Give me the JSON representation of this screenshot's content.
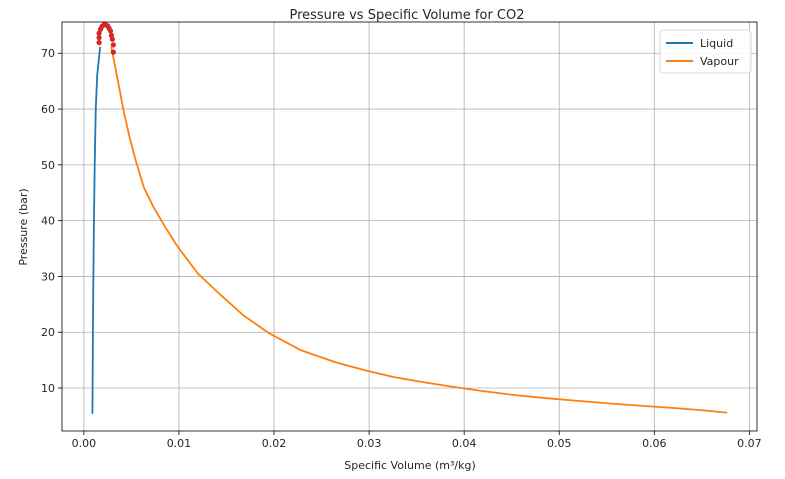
{
  "chart_data": {
    "type": "line",
    "title": "Pressure vs Specific Volume for CO2",
    "xlabel": "Specific Volume (m³/kg)",
    "ylabel": "Pressure (bar)",
    "xlim": [
      -0.0023,
      0.0708
    ],
    "ylim": [
      2.3,
      75.6
    ],
    "xticks": [
      0.0,
      0.01,
      0.02,
      0.03,
      0.04,
      0.05,
      0.06,
      0.07
    ],
    "xtick_labels": [
      "0.00",
      "0.01",
      "0.02",
      "0.03",
      "0.04",
      "0.05",
      "0.06",
      "0.07"
    ],
    "yticks": [
      10,
      20,
      30,
      40,
      50,
      60,
      70
    ],
    "ytick_labels": [
      "10",
      "20",
      "30",
      "40",
      "50",
      "60",
      "70"
    ],
    "grid": true,
    "legend_position": "top-right",
    "series": [
      {
        "name": "Liquid",
        "color": "#1f77b4",
        "x": [
          0.0009,
          0.00092,
          0.00095,
          0.001,
          0.00106,
          0.00114,
          0.00125,
          0.0014,
          0.0017
        ],
        "y": [
          5.5,
          10.0,
          20.0,
          30.0,
          40.0,
          50.0,
          60.0,
          66.0,
          71.0
        ]
      },
      {
        "name": "Vapour",
        "color": "#ff7f0e",
        "x": [
          0.0029,
          0.0033,
          0.0037,
          0.0042,
          0.0048,
          0.0055,
          0.0063,
          0.0073,
          0.0085,
          0.0098,
          0.012,
          0.0145,
          0.0168,
          0.0195,
          0.0228,
          0.0265,
          0.0295,
          0.0325,
          0.0355,
          0.0385,
          0.0418,
          0.045,
          0.0485,
          0.052,
          0.0555,
          0.0588,
          0.0622,
          0.0652,
          0.0676
        ],
        "y": [
          71.0,
          67.5,
          64.0,
          59.5,
          55.0,
          50.5,
          46.0,
          42.5,
          39.0,
          35.5,
          30.5,
          26.5,
          23.0,
          19.8,
          16.8,
          14.6,
          13.2,
          12.0,
          11.1,
          10.3,
          9.5,
          8.8,
          8.2,
          7.7,
          7.2,
          6.8,
          6.4,
          6.0,
          5.6
        ]
      }
    ],
    "markers": {
      "color": "#d62728",
      "x": [
        0.0016,
        0.0016,
        0.0016,
        0.00175,
        0.0019,
        0.0021,
        0.0023,
        0.0025,
        0.00265,
        0.0028,
        0.0029,
        0.003,
        0.0031,
        0.0031
      ],
      "y": [
        71.9,
        72.8,
        73.6,
        74.3,
        74.8,
        75.1,
        75.1,
        74.9,
        74.5,
        74.0,
        73.2,
        72.5,
        71.5,
        70.2
      ]
    }
  }
}
